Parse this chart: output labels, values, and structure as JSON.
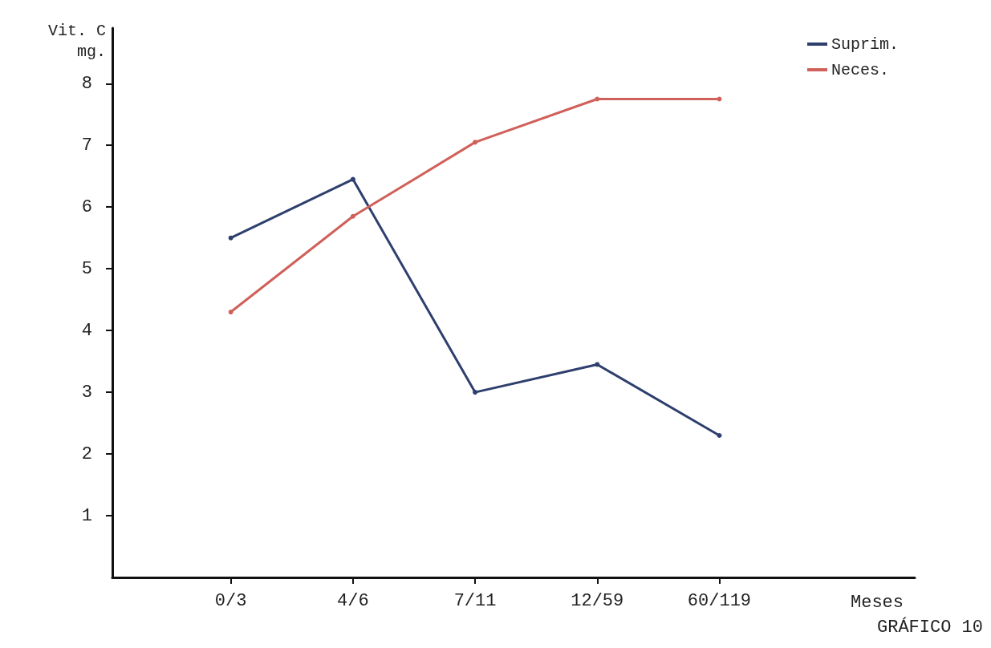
{
  "chart_data": {
    "type": "line",
    "title": "GRÁFICO 10",
    "xlabel": "Meses",
    "ylabel": "Vit. C\nmg.",
    "categories": [
      "0/3",
      "4/6",
      "7/11",
      "12/59",
      "60/119"
    ],
    "series": [
      {
        "name": "Suprim.",
        "color": "#2e3f6e",
        "values": [
          5.5,
          6.45,
          3.0,
          3.45,
          2.3
        ]
      },
      {
        "name": "Neces.",
        "color": "#d0605a",
        "values": [
          4.3,
          5.85,
          7.05,
          7.75,
          7.75
        ]
      }
    ],
    "ylim": [
      0,
      8.9
    ],
    "yticks": [
      1,
      2,
      3,
      4,
      5,
      6,
      7,
      8
    ],
    "grid": false,
    "legend": "top right",
    "marker": "circle",
    "line_style": "solid"
  }
}
